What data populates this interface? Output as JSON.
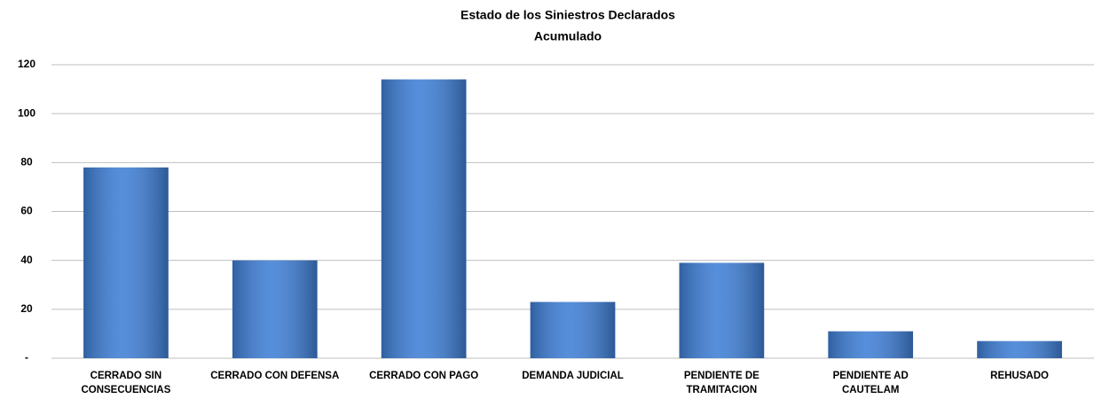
{
  "chart_data": {
    "type": "bar",
    "title": "Estado de los Siniestros Declarados",
    "subtitle": "Acumulado",
    "categories": [
      "CERRADO SIN\nCONSECUENCIAS",
      "CERRADO CON DEFENSA",
      "CERRADO CON PAGO",
      "DEMANDA JUDICIAL",
      "PENDIENTE DE\nTRAMITACION",
      "PENDIENTE AD\nCAUTELAM",
      "REHUSADO"
    ],
    "values": [
      78,
      40,
      114,
      23,
      39,
      11,
      7
    ],
    "color": "#3f7fd6",
    "ylim": [
      0,
      120
    ],
    "yticks": [
      {
        "value": 0,
        "label": "-"
      },
      20,
      40,
      60,
      80,
      100,
      120
    ],
    "grid": true
  }
}
